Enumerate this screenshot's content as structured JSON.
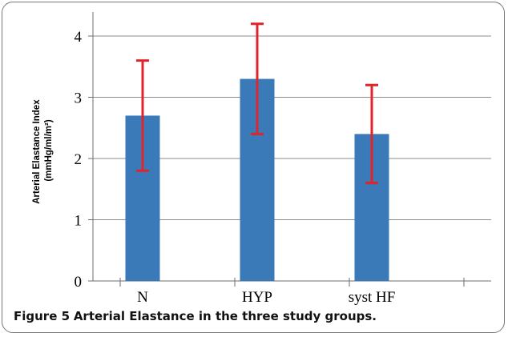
{
  "caption": {
    "label": "Figure 5",
    "text": "Arterial Elastance in the three study groups."
  },
  "colors": {
    "bar": "#3a7ab8",
    "error_bar": "#e0242c",
    "grid": "#8c8c8c",
    "axis": "#6e6e6e"
  },
  "chart_data": {
    "type": "bar",
    "categories": [
      "N",
      "HYP",
      "syst HF"
    ],
    "series": [
      {
        "values": [
          2.7,
          3.3,
          2.4
        ],
        "error_low": [
          1.8,
          2.4,
          1.6
        ],
        "error_high": [
          3.6,
          4.2,
          3.2
        ]
      }
    ],
    "title": "",
    "xlabel": "",
    "ylabel_line1": "Arterial Elastance Index",
    "ylabel_line2": "(mmHg/ml/m²)",
    "ylim": [
      0,
      4
    ],
    "yticks": [
      0,
      1,
      2,
      3,
      4
    ],
    "grid": true,
    "legend": "none"
  }
}
